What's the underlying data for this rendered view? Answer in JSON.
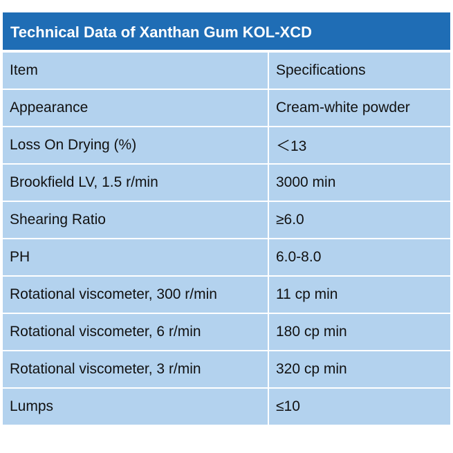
{
  "title": "Technical Data of Xanthan Gum KOL-XCD",
  "table": {
    "header": [
      "Item",
      "Specifications"
    ],
    "rows": [
      [
        "Appearance",
        "Cream-white powder"
      ],
      [
        "Loss On Drying (%)",
        "＜13"
      ],
      [
        "Brookfield LV, 1.5 r/min",
        "3000 min"
      ],
      [
        "Shearing Ratio",
        "≥6.0"
      ],
      [
        "PH",
        "6.0-8.0"
      ],
      [
        "Rotational viscometer, 300 r/min",
        "11 cp min"
      ],
      [
        "Rotational viscometer, 6 r/min",
        "180 cp min"
      ],
      [
        "Rotational viscometer, 3 r/min",
        "320 cp min"
      ],
      [
        "Lumps",
        "≤10"
      ]
    ]
  }
}
